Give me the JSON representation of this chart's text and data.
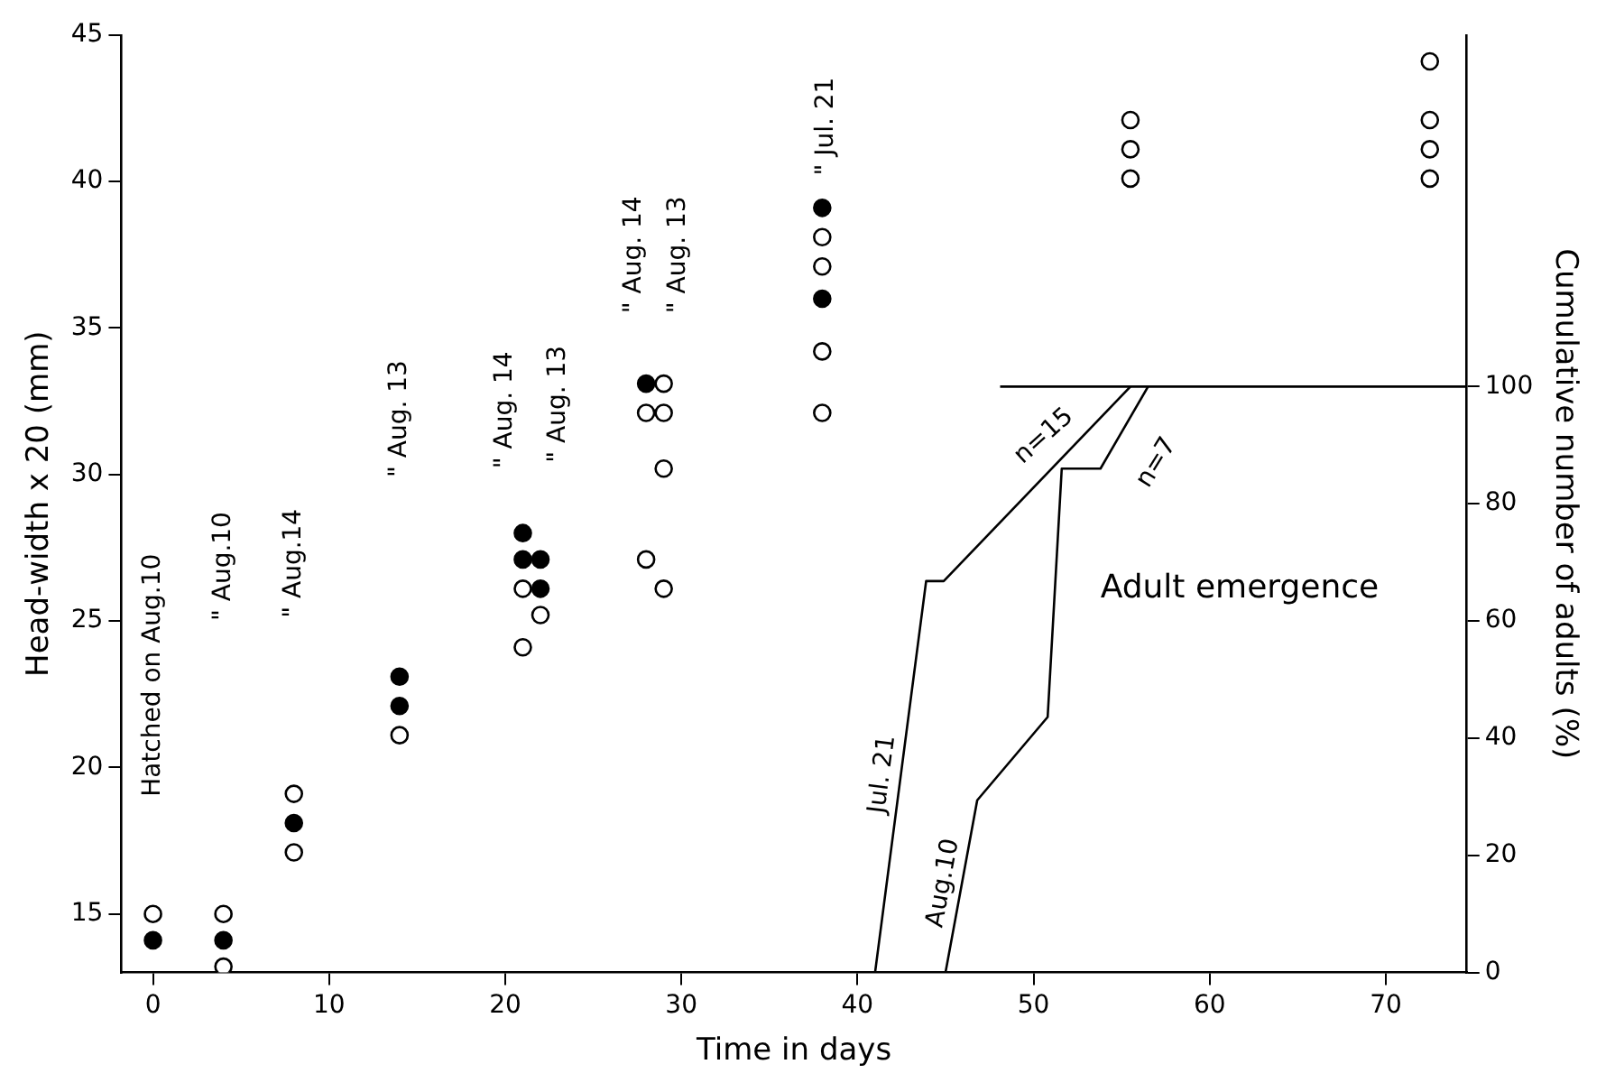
{
  "chart_data": {
    "type": "scatter",
    "xlabel": "Time in days",
    "ylabel": "Head-width x 20 (mm)",
    "y2label": "Cumulative number of adults (%)",
    "xlim": [
      -1.8,
      74.6
    ],
    "xticks": [
      0,
      10,
      20,
      30,
      40,
      50,
      60,
      70
    ],
    "ylim": [
      13,
      45
    ],
    "yticks": [
      15,
      20,
      25,
      30,
      35,
      40,
      45
    ],
    "y2lim": [
      0,
      160
    ],
    "y2ticks": [
      0,
      20,
      40,
      60,
      80,
      100
    ],
    "grid": false,
    "legend": false,
    "series": [
      {
        "marker": "circle",
        "color": "#ffffff",
        "x": [
          0,
          4,
          4,
          8,
          8,
          14,
          21,
          21,
          22,
          28,
          28,
          29,
          29,
          29,
          29,
          38,
          38,
          38,
          38,
          55.5,
          55.5,
          55.5,
          72.5,
          72.5,
          72.5,
          72.5
        ],
        "values": [
          15,
          15,
          13.2,
          19.1,
          17.1,
          21.1,
          26.1,
          24.1,
          25.2,
          32.1,
          27.1,
          33.1,
          32.1,
          30.2,
          26.1,
          38.1,
          37.1,
          34.2,
          32.1,
          42.1,
          41.1,
          40.1,
          44.1,
          42.1,
          41.1,
          40.1
        ]
      },
      {
        "marker": "circle",
        "color": "#000000",
        "x": [
          0,
          4,
          8,
          14,
          14,
          21,
          21,
          22,
          22,
          28,
          38,
          38
        ],
        "values": [
          14.1,
          14.1,
          18.1,
          23.1,
          22.1,
          28.0,
          27.1,
          27.1,
          26.1,
          33.1,
          39.1,
          36.0
        ]
      },
      {
        "type": "line",
        "marker": "none",
        "name": "Jul. 21",
        "color": "#000000",
        "axis": "y2",
        "x": [
          41,
          43.9,
          44.9,
          55.5
        ],
        "values": [
          0,
          66.8,
          66.8,
          100
        ]
      },
      {
        "type": "line",
        "marker": "none",
        "name": "Aug.10",
        "color": "#000000",
        "axis": "y2",
        "x": [
          45,
          46.8,
          50.8,
          51.6,
          53.8,
          56.5
        ],
        "values": [
          0,
          29.4,
          43.6,
          86,
          86,
          100
        ]
      },
      {
        "type": "line",
        "marker": "none",
        "color": "#000000",
        "axis": "y2",
        "x": [
          48.1,
          74.6
        ],
        "values": [
          100,
          100
        ]
      }
    ],
    "annotations": [
      "Hatched on Aug.10",
      "\" Aug.10",
      "\" Aug.14",
      "\" Aug. 13",
      "\" Aug. 14",
      "\" Aug. 13",
      "\" Aug. 14",
      "\" Aug. 13",
      "\" Jul. 21",
      "n=15",
      "n=7",
      "Adult emergence"
    ]
  }
}
